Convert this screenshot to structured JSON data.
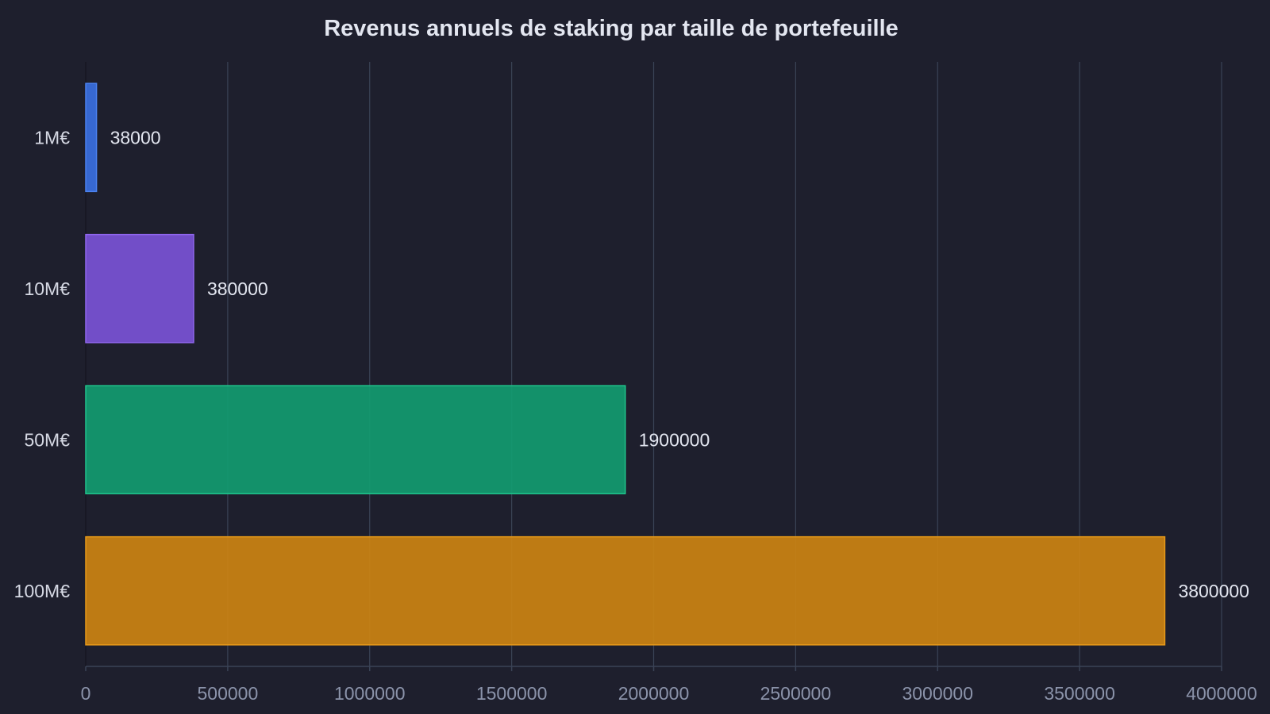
{
  "chart_data": {
    "type": "bar",
    "orientation": "horizontal",
    "title": "Revenus annuels de staking par taille de portefeuille",
    "xlabel": "",
    "ylabel": "",
    "categories": [
      "1M€",
      "10M€",
      "50M€",
      "100M€"
    ],
    "values": [
      38000,
      380000,
      1900000,
      3800000
    ],
    "data_labels": [
      "38000",
      "380000",
      "1900000",
      "3800000"
    ],
    "colors": [
      "#3a6fe0",
      "#7a52d6",
      "#129b70",
      "#cc8312"
    ],
    "edge_colors": [
      "#4b82f0",
      "#8f66ee",
      "#20c48c",
      "#e89a18"
    ],
    "xlim": [
      0,
      4000000
    ],
    "xticks": [
      0,
      500000,
      1000000,
      1500000,
      2000000,
      2500000,
      3000000,
      3500000,
      4000000
    ],
    "xtick_labels": [
      "0",
      "500000",
      "1000000",
      "1500000",
      "2000000",
      "2500000",
      "3000000",
      "3500000",
      "4000000"
    ],
    "grid": "vertical",
    "legend": "none"
  }
}
